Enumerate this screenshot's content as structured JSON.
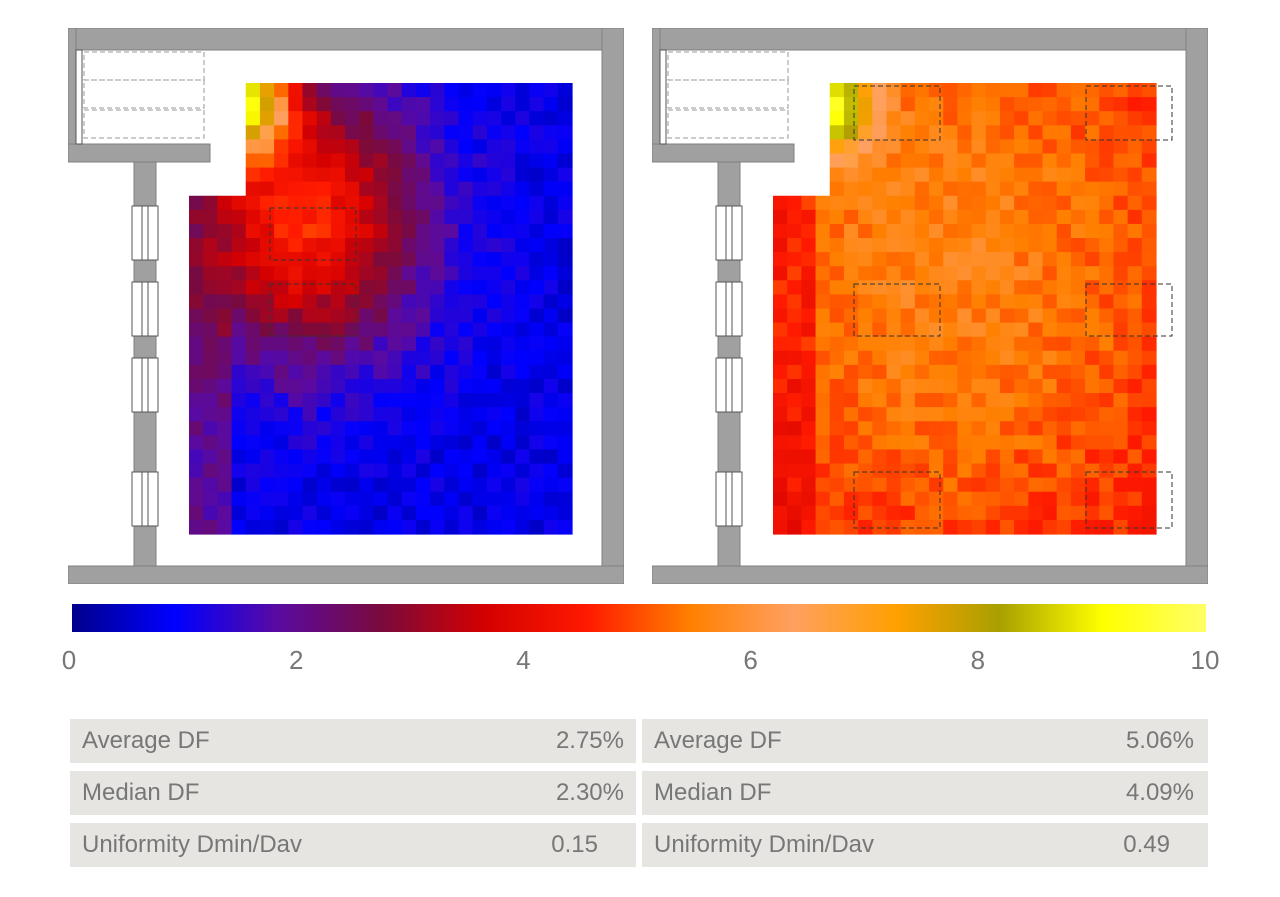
{
  "chart_data": [
    {
      "type": "heatmap",
      "name": "",
      "scale": {
        "min": 0,
        "max": 10
      },
      "field": {
        "peak": {
          "x": 0.3,
          "y": 0.3,
          "value": 4.6
        },
        "daylight_corner": {
          "x": 0.05,
          "y": 0.05,
          "value": 9.5
        },
        "far_corner_value": 0.8,
        "left_edge_value": 3.5
      },
      "stats": [
        {
          "label": "Average DF",
          "value": "2.75%"
        },
        {
          "label": "Median DF",
          "value": "2.30%"
        },
        {
          "label": "Uniformity Dmin/Dav",
          "value": "0.15"
        }
      ]
    },
    {
      "type": "heatmap",
      "name": "",
      "scale": {
        "min": 0,
        "max": 10
      },
      "field": {
        "peak": {
          "x": 0.45,
          "y": 0.4,
          "value": 5.6
        },
        "daylight_corner": {
          "x": 0.05,
          "y": 0.05,
          "value": 9.5
        },
        "far_corner_value": 4.0,
        "left_edge_value": 3.5
      },
      "stats": [
        {
          "label": "Average DF",
          "value": "5.06%"
        },
        {
          "label": "Median DF",
          "value": "4.09%"
        },
        {
          "label": "Uniformity Dmin/Dav",
          "value": "0.49"
        }
      ]
    }
  ],
  "colorbar": {
    "ticks": [
      "0",
      "2",
      "4",
      "6",
      "8",
      "10"
    ],
    "stops": [
      "#00008b",
      "#0000ff",
      "#5a0aa0",
      "#7a0a3c",
      "#d40000",
      "#ff1a00",
      "#ff8000",
      "#ffa060",
      "#ffa000",
      "#a8a000",
      "#ffff00",
      "#ffff66"
    ]
  },
  "colors": {
    "wall": "#a0a0a0",
    "wall_stroke": "#808080",
    "panel": "#e6e5e2",
    "text": "#777777"
  }
}
